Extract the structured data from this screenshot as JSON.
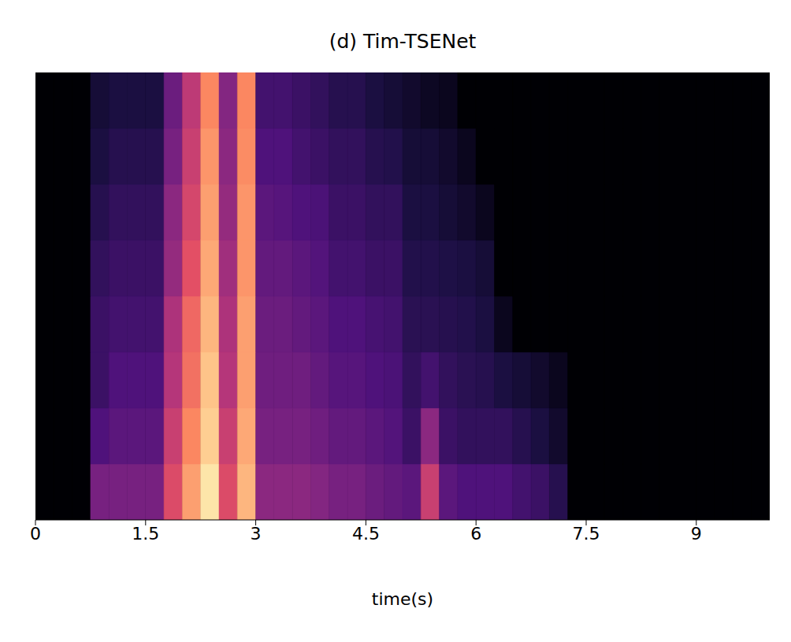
{
  "chart_data": {
    "type": "heatmap",
    "title": "(d) Tim-TSENet",
    "x_label": "time(s)",
    "xlim": [
      0,
      10
    ],
    "xticks": [
      0,
      1.5,
      3,
      4.5,
      6,
      7.5,
      9
    ],
    "ylim": [
      0,
      8
    ],
    "tick_labels": "x",
    "color_range": [
      0,
      1
    ],
    "x_edges": [
      0,
      0.25,
      0.5,
      0.75,
      1,
      1.25,
      1.5,
      1.75,
      2,
      2.25,
      2.5,
      2.75,
      3,
      3.25,
      3.5,
      3.75,
      4,
      4.25,
      4.5,
      4.75,
      5,
      5.25,
      5.5,
      5.75,
      6,
      6.25,
      6.5,
      6.75,
      7,
      7.25,
      7.5,
      7.75,
      8,
      8.25,
      8.5,
      8.75,
      9,
      9.25,
      9.5,
      9.75,
      10
    ],
    "y_edges": [
      0,
      1,
      2,
      3,
      4,
      5,
      6,
      7,
      8
    ],
    "cells": [
      [
        0,
        0,
        0,
        0.35,
        0.35,
        0.35,
        0.35,
        0.6,
        0.8,
        0.95,
        0.6,
        0.85,
        0.4,
        0.4,
        0.4,
        0.38,
        0.35,
        0.35,
        0.32,
        0.3,
        0.28,
        0.55,
        0.28,
        0.25,
        0.25,
        0.25,
        0.22,
        0.2,
        0.15,
        0,
        0,
        0,
        0,
        0,
        0,
        0,
        0,
        0,
        0,
        0
      ],
      [
        0,
        0,
        0,
        0.25,
        0.28,
        0.28,
        0.28,
        0.55,
        0.75,
        0.9,
        0.55,
        0.82,
        0.35,
        0.35,
        0.35,
        0.33,
        0.3,
        0.3,
        0.28,
        0.26,
        0.2,
        0.4,
        0.2,
        0.18,
        0.18,
        0.18,
        0.15,
        0.12,
        0.08,
        0,
        0,
        0,
        0,
        0,
        0,
        0,
        0,
        0,
        0,
        0
      ],
      [
        0,
        0,
        0,
        0.2,
        0.25,
        0.25,
        0.25,
        0.5,
        0.7,
        0.88,
        0.5,
        0.8,
        0.33,
        0.33,
        0.33,
        0.3,
        0.27,
        0.27,
        0.25,
        0.24,
        0.18,
        0.22,
        0.18,
        0.16,
        0.15,
        0.12,
        0.1,
        0.08,
        0.05,
        0,
        0,
        0,
        0,
        0,
        0,
        0,
        0,
        0,
        0,
        0
      ],
      [
        0,
        0,
        0,
        0.2,
        0.22,
        0.22,
        0.22,
        0.48,
        0.68,
        0.85,
        0.48,
        0.8,
        0.32,
        0.32,
        0.3,
        0.28,
        0.25,
        0.25,
        0.23,
        0.22,
        0.16,
        0.16,
        0.15,
        0.14,
        0.12,
        0.05,
        0,
        0,
        0,
        0,
        0,
        0,
        0,
        0,
        0,
        0,
        0,
        0,
        0,
        0
      ],
      [
        0,
        0,
        0,
        0.18,
        0.2,
        0.2,
        0.2,
        0.42,
        0.62,
        0.82,
        0.45,
        0.78,
        0.3,
        0.3,
        0.28,
        0.26,
        0.22,
        0.22,
        0.2,
        0.2,
        0.14,
        0.14,
        0.13,
        0.12,
        0.1,
        0,
        0,
        0,
        0,
        0,
        0,
        0,
        0,
        0,
        0,
        0,
        0,
        0,
        0,
        0
      ],
      [
        0,
        0,
        0,
        0.15,
        0.18,
        0.18,
        0.18,
        0.4,
        0.58,
        0.8,
        0.42,
        0.78,
        0.28,
        0.27,
        0.25,
        0.24,
        0.2,
        0.2,
        0.18,
        0.18,
        0.12,
        0.12,
        0.1,
        0.08,
        0.05,
        0,
        0,
        0,
        0,
        0,
        0,
        0,
        0,
        0,
        0,
        0,
        0,
        0,
        0,
        0
      ],
      [
        0,
        0,
        0,
        0.12,
        0.15,
        0.15,
        0.15,
        0.35,
        0.55,
        0.78,
        0.4,
        0.76,
        0.25,
        0.25,
        0.22,
        0.2,
        0.18,
        0.18,
        0.15,
        0.14,
        0.1,
        0.1,
        0.08,
        0.05,
        0,
        0,
        0,
        0,
        0,
        0,
        0,
        0,
        0,
        0,
        0,
        0,
        0,
        0,
        0,
        0
      ],
      [
        0,
        0,
        0,
        0.1,
        0.12,
        0.12,
        0.12,
        0.32,
        0.52,
        0.75,
        0.38,
        0.75,
        0.22,
        0.22,
        0.2,
        0.18,
        0.15,
        0.15,
        0.12,
        0.1,
        0.08,
        0.06,
        0.05,
        0,
        0,
        0,
        0,
        0,
        0,
        0,
        0,
        0,
        0,
        0,
        0,
        0,
        0,
        0,
        0,
        0
      ]
    ]
  }
}
